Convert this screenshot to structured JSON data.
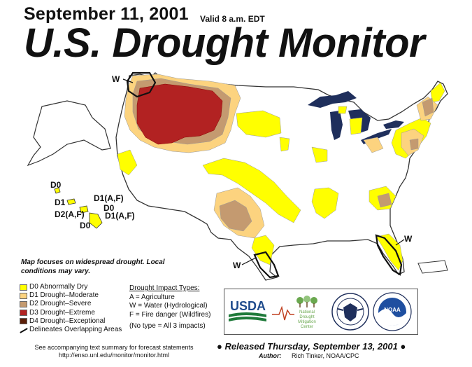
{
  "header": {
    "date": "September 11, 2001",
    "valid": "Valid 8 a.m. EDT",
    "title": "U.S. Drought Monitor"
  },
  "map_labels": {
    "w_northwest": "W",
    "w_texas": "W",
    "w_florida": "W",
    "hawaii": {
      "d0_top": "D0",
      "d1": "D1",
      "d1_af_top": "D1(A,F)",
      "d0_mid": "D0",
      "d2_af": "D2(A,F)",
      "d1_af_bottom": "D1(A,F)",
      "d0_bottom": "D0"
    }
  },
  "note": "Map focuses on widespread drought. Local conditions may vary.",
  "legend": {
    "items": [
      {
        "label": "D0 Abnormally Dry",
        "color": "#ffff00"
      },
      {
        "label": "D1 Drought–Moderate",
        "color": "#fcd37f"
      },
      {
        "label": "D2 Drought–Severe",
        "color": "#c49a70"
      },
      {
        "label": "D3 Drought–Extreme",
        "color": "#b22222"
      },
      {
        "label": "D4 Drought–Exceptional",
        "color": "#5c1e08"
      }
    ],
    "overlap": "Delineates Overlapping Areas"
  },
  "impacts": {
    "heading": "Drought Impact Types:",
    "a": "A = Agriculture",
    "w": "W = Water (Hydrological)",
    "f": "F = Fire danger (Wildfires)",
    "none": "(No type = All 3 impacts)"
  },
  "logos": {
    "usda": "USDA",
    "ndmc_line1": "National",
    "ndmc_line2": "Drought",
    "ndmc_line3": "Mitigation",
    "ndmc_line4": "Center",
    "noaa": "NOAA"
  },
  "footer": {
    "accompanying_line1": "See accompanying text summary for forecast statements",
    "accompanying_line2": "http://enso.unl.edu/monitor/monitor.html",
    "released": "Released Thursday, September 13, 2001",
    "author_label": "Author:",
    "author_name": "Rich Tinker, NOAA/CPC"
  },
  "colors": {
    "d0": "#ffff00",
    "d1": "#fcd37f",
    "d2": "#c49a70",
    "d3": "#b22222",
    "d4": "#5c1e08",
    "water": "#1f2f5c",
    "land": "#ffffff",
    "border": "#555555"
  }
}
